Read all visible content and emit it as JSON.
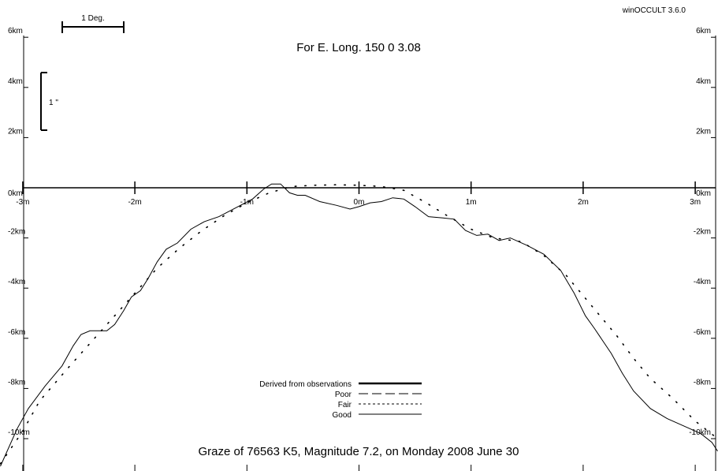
{
  "app_label": "winOCCULT 3.6.0",
  "title": "For E. Long.  150  0  3.08",
  "footer": "Graze of    76563   K5,  Magnitude   7.2,  on Monday  2008  June  30",
  "scale_bar_label": "1 Deg.",
  "arcsec_label": "1 \"",
  "chart_data": {
    "type": "line",
    "x_ticks": [
      {
        "value": -3,
        "label": "-3m"
      },
      {
        "value": -2,
        "label": "-2m"
      },
      {
        "value": -1,
        "label": "-1m"
      },
      {
        "value": 0,
        "label": "0m"
      },
      {
        "value": 1,
        "label": "1m"
      },
      {
        "value": 2,
        "label": "2m"
      },
      {
        "value": 3,
        "label": "3m"
      }
    ],
    "y_ticks": [
      {
        "value": 6,
        "label": "6km"
      },
      {
        "value": 4,
        "label": "4km"
      },
      {
        "value": 2,
        "label": "2km"
      },
      {
        "value": 0,
        "label": "0km"
      },
      {
        "value": -2,
        "label": "-2km"
      },
      {
        "value": -4,
        "label": "-4km"
      },
      {
        "value": -6,
        "label": "-6km"
      },
      {
        "value": -8,
        "label": "-8km"
      },
      {
        "value": -10,
        "label": "-10km"
      }
    ],
    "xlim": [
      -3.2,
      3.2
    ],
    "ylim": [
      -11.2,
      7.5
    ],
    "legend": [
      {
        "label": "Derived from observations",
        "style": "thick"
      },
      {
        "label": "Poor",
        "style": "dashed"
      },
      {
        "label": "Fair",
        "style": "dotted"
      },
      {
        "label": "Good",
        "style": "thin"
      }
    ],
    "series": [
      {
        "style": "profile",
        "points": [
          [
            -3.2,
            -11.1
          ],
          [
            -3.05,
            -9.6
          ],
          [
            -2.95,
            -8.8
          ],
          [
            -2.8,
            -7.9
          ],
          [
            -2.65,
            -7.1
          ],
          [
            -2.55,
            -6.3
          ],
          [
            -2.48,
            -5.85
          ],
          [
            -2.4,
            -5.7
          ],
          [
            -2.25,
            -5.7
          ],
          [
            -2.18,
            -5.45
          ],
          [
            -2.1,
            -4.9
          ],
          [
            -2.03,
            -4.35
          ],
          [
            -1.95,
            -4.1
          ],
          [
            -1.88,
            -3.6
          ],
          [
            -1.8,
            -2.95
          ],
          [
            -1.72,
            -2.45
          ],
          [
            -1.62,
            -2.2
          ],
          [
            -1.5,
            -1.65
          ],
          [
            -1.38,
            -1.35
          ],
          [
            -1.25,
            -1.15
          ],
          [
            -1.1,
            -0.8
          ],
          [
            -0.95,
            -0.45
          ],
          [
            -0.85,
            -0.05
          ],
          [
            -0.78,
            0.15
          ],
          [
            -0.7,
            0.15
          ],
          [
            -0.62,
            -0.2
          ],
          [
            -0.55,
            -0.3
          ],
          [
            -0.48,
            -0.3
          ],
          [
            -0.35,
            -0.55
          ],
          [
            -0.2,
            -0.7
          ],
          [
            -0.08,
            -0.85
          ],
          [
            0.0,
            -0.75
          ],
          [
            0.1,
            -0.6
          ],
          [
            0.2,
            -0.55
          ],
          [
            0.3,
            -0.4
          ],
          [
            0.4,
            -0.45
          ],
          [
            0.5,
            -0.75
          ],
          [
            0.62,
            -1.15
          ],
          [
            0.75,
            -1.2
          ],
          [
            0.85,
            -1.25
          ],
          [
            0.95,
            -1.7
          ],
          [
            1.05,
            -1.9
          ],
          [
            1.15,
            -1.85
          ],
          [
            1.25,
            -2.1
          ],
          [
            1.35,
            -2.0
          ],
          [
            1.5,
            -2.3
          ],
          [
            1.65,
            -2.65
          ],
          [
            1.8,
            -3.3
          ],
          [
            1.92,
            -4.2
          ],
          [
            2.02,
            -5.1
          ],
          [
            2.1,
            -5.6
          ],
          [
            2.25,
            -6.6
          ],
          [
            2.35,
            -7.4
          ],
          [
            2.45,
            -8.1
          ],
          [
            2.6,
            -8.8
          ],
          [
            2.75,
            -9.2
          ],
          [
            2.9,
            -9.5
          ],
          [
            3.05,
            -9.8
          ],
          [
            3.15,
            -10.15
          ],
          [
            3.2,
            -10.5
          ]
        ]
      },
      {
        "style": "dotted",
        "points": [
          [
            -3.2,
            -11.0
          ],
          [
            -3.0,
            -9.7
          ],
          [
            -2.85,
            -8.5
          ],
          [
            -2.6,
            -7.2
          ],
          [
            -2.4,
            -6.2
          ],
          [
            -2.2,
            -5.2
          ],
          [
            -2.0,
            -4.2
          ],
          [
            -1.8,
            -3.2
          ],
          [
            -1.6,
            -2.4
          ],
          [
            -1.4,
            -1.7
          ],
          [
            -1.2,
            -1.1
          ],
          [
            -1.0,
            -0.6
          ],
          [
            -0.8,
            -0.2
          ],
          [
            -0.6,
            0.05
          ],
          [
            -0.4,
            0.1
          ],
          [
            -0.2,
            0.12
          ],
          [
            0.0,
            0.1
          ],
          [
            0.2,
            0.05
          ],
          [
            0.4,
            -0.1
          ],
          [
            0.6,
            -0.6
          ],
          [
            0.8,
            -1.15
          ],
          [
            1.0,
            -1.65
          ],
          [
            1.2,
            -2.0
          ],
          [
            1.45,
            -2.15
          ],
          [
            1.65,
            -2.7
          ],
          [
            1.85,
            -3.5
          ],
          [
            2.0,
            -4.3
          ],
          [
            2.15,
            -5.1
          ],
          [
            2.3,
            -5.9
          ],
          [
            2.45,
            -6.8
          ],
          [
            2.6,
            -7.6
          ],
          [
            2.8,
            -8.4
          ],
          [
            3.0,
            -9.3
          ],
          [
            3.2,
            -10.0
          ]
        ]
      }
    ]
  }
}
